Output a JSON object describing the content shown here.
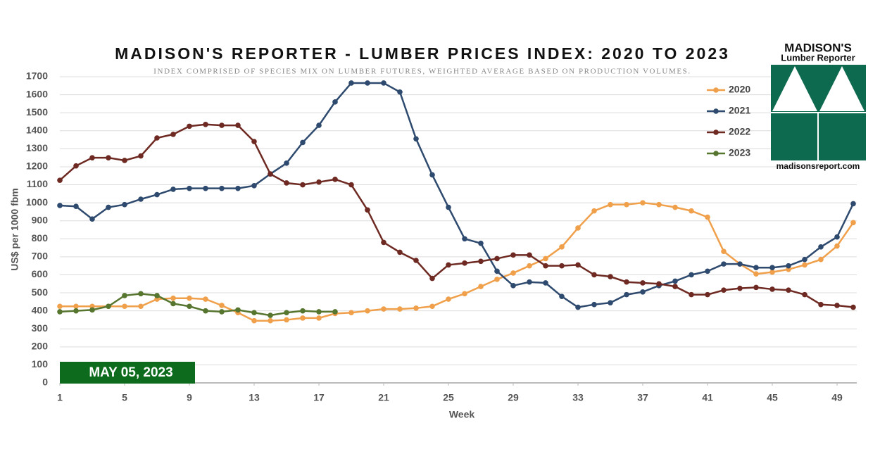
{
  "chart_data": {
    "type": "line",
    "title": "MADISON'S REPORTER - LUMBER PRICES INDEX: 2020 TO 2023",
    "subtitle": "INDEX COMPRISED OF SPECIES MIX ON LUMBER FUTURES, WEIGHTED AVERAGE BASED ON PRODUCTION VOLUMES.",
    "x_label": "Week",
    "y_label": "US$ per 1000 fbm",
    "date_label": "MAY 05, 2023",
    "logo": {
      "name": "MADISON'S",
      "subtitle": "Lumber Reporter",
      "url": "madisonsreport.com"
    },
    "x": [
      1,
      2,
      3,
      4,
      5,
      6,
      7,
      8,
      9,
      10,
      11,
      12,
      13,
      14,
      15,
      16,
      17,
      18,
      19,
      20,
      21,
      22,
      23,
      24,
      25,
      26,
      27,
      28,
      29,
      30,
      31,
      32,
      33,
      34,
      35,
      36,
      37,
      38,
      39,
      40,
      41,
      42,
      43,
      44,
      45,
      46,
      47,
      48,
      49,
      50
    ],
    "xlim": [
      1,
      50
    ],
    "xticks": [
      1,
      5,
      9,
      13,
      17,
      21,
      25,
      29,
      33,
      37,
      41,
      45,
      49
    ],
    "ylim": [
      0,
      1700
    ],
    "yticks": [
      0,
      100,
      200,
      300,
      400,
      500,
      600,
      700,
      800,
      900,
      1000,
      1100,
      1200,
      1300,
      1400,
      1500,
      1600,
      1700
    ],
    "grid": true,
    "legend": "upper right",
    "series": [
      {
        "name": "2020",
        "color": "#f0a04b",
        "values": [
          425,
          425,
          425,
          425,
          425,
          425,
          465,
          470,
          470,
          465,
          430,
          390,
          345,
          345,
          350,
          360,
          360,
          385,
          390,
          400,
          410,
          410,
          415,
          425,
          465,
          495,
          535,
          575,
          610,
          650,
          690,
          755,
          860,
          955,
          990,
          990,
          1000,
          990,
          975,
          955,
          920,
          730,
          660,
          605,
          615,
          630,
          655,
          685,
          760,
          890
        ]
      },
      {
        "name": "2021",
        "color": "#2e4a6e",
        "values": [
          985,
          980,
          910,
          975,
          990,
          1020,
          1045,
          1075,
          1080,
          1080,
          1080,
          1080,
          1095,
          1160,
          1220,
          1335,
          1430,
          1560,
          1665,
          1665,
          1665,
          1615,
          1355,
          1155,
          975,
          800,
          775,
          620,
          540,
          560,
          555,
          480,
          420,
          435,
          445,
          490,
          505,
          540,
          565,
          600,
          620,
          660,
          660,
          640,
          640,
          650,
          685,
          755,
          810,
          995
        ]
      },
      {
        "name": "2022",
        "color": "#6e2a22",
        "values": [
          1125,
          1205,
          1250,
          1250,
          1235,
          1260,
          1360,
          1380,
          1425,
          1435,
          1430,
          1430,
          1340,
          1160,
          1110,
          1100,
          1115,
          1130,
          1100,
          960,
          780,
          725,
          680,
          580,
          655,
          665,
          675,
          690,
          710,
          710,
          650,
          650,
          655,
          600,
          590,
          560,
          555,
          550,
          535,
          490,
          490,
          515,
          525,
          530,
          520,
          515,
          490,
          435,
          430,
          420
        ]
      },
      {
        "name": "2023",
        "color": "#56752e",
        "values": [
          395,
          400,
          405,
          425,
          485,
          495,
          485,
          440,
          425,
          400,
          395,
          405,
          390,
          375,
          390,
          400,
          395,
          395,
          null,
          null,
          null,
          null,
          null,
          null,
          null,
          null,
          null,
          null,
          null,
          null,
          null,
          null,
          null,
          null,
          null,
          null,
          null,
          null,
          null,
          null,
          null,
          null,
          null,
          null,
          null,
          null,
          null,
          null,
          null,
          null
        ]
      }
    ]
  }
}
